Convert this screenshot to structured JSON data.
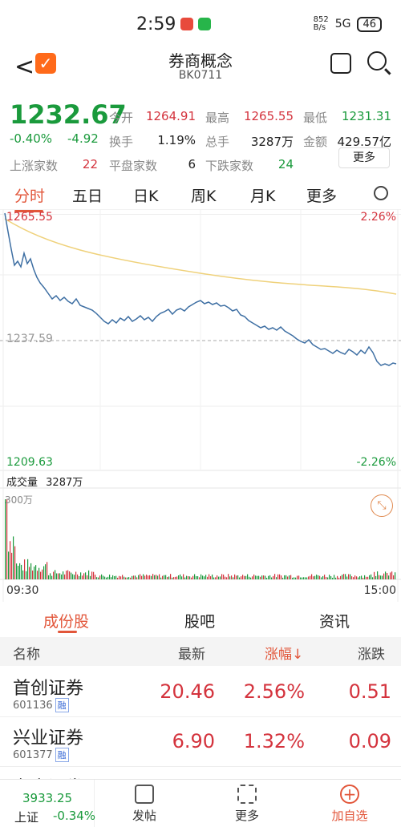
{
  "status": {
    "time": "2:59",
    "net": "852\nB/s",
    "sig": "5G",
    "battery": "46"
  },
  "header": {
    "title": "券商概念",
    "code": "BK0711"
  },
  "quote": {
    "price": "1232.67",
    "chg_pct": "-0.40%",
    "chg": "-4.92",
    "stats": [
      {
        "label": "今开",
        "value": "1264.91",
        "color": "red"
      },
      {
        "label": "最高",
        "value": "1265.55",
        "color": "red"
      },
      {
        "label": "最低",
        "value": "1231.31",
        "color": "green"
      },
      {
        "label": "换手",
        "value": "1.19%",
        "color": "blk"
      },
      {
        "label": "总手",
        "value": "3287万",
        "color": "blk"
      },
      {
        "label": "金额",
        "value": "429.57亿",
        "color": "blk"
      },
      {
        "label": "上涨家数",
        "value": "22",
        "color": "red"
      },
      {
        "label": "平盘家数",
        "value": "6",
        "color": "blk"
      },
      {
        "label": "下跌家数",
        "value": "24",
        "color": "green"
      }
    ],
    "more": "更多"
  },
  "tabs": [
    "分时",
    "五日",
    "日K",
    "周K",
    "月K",
    "更多"
  ],
  "chart": {
    "high": "1265.55",
    "base": "1237.59",
    "low": "1209.63",
    "pct_high": "2.26%",
    "pct_low": "-2.26%",
    "vol_label": "成交量",
    "vol_total": "3287万",
    "vol_max": "300万",
    "t_start": "09:30",
    "t_end": "15:00"
  },
  "bottom_tabs": [
    "成份股",
    "股吧",
    "资讯"
  ],
  "table": {
    "headers": [
      "名称",
      "最新",
      "涨幅",
      "涨跌"
    ],
    "rows": [
      {
        "name": "首创证券",
        "code": "601136",
        "tag": "融",
        "latest": "20.46",
        "pct": "2.56%",
        "chg": "0.51"
      },
      {
        "name": "兴业证券",
        "code": "601377",
        "tag": "融",
        "latest": "6.90",
        "pct": "1.32%",
        "chg": "0.09"
      },
      {
        "name": "东方证券",
        "code": "",
        "tag": "",
        "latest": "",
        "pct": "",
        "chg": ""
      }
    ]
  },
  "navbar": {
    "index_value": "3933.25",
    "index_name": "上证",
    "index_chg": "-0.34%",
    "items": [
      "发帖",
      "更多",
      "加自选"
    ]
  }
}
